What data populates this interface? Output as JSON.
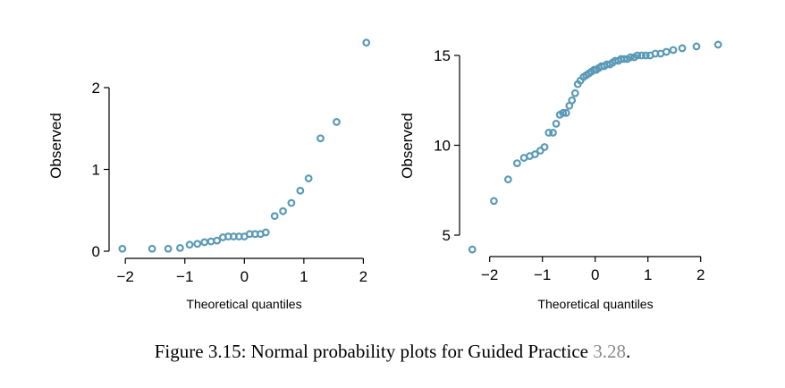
{
  "accent_color": "#5b9ab6",
  "reference_color": "#8a8a8a",
  "caption": {
    "text": "Figure 3.15: Normal probability plots for Guided Practice",
    "ref": "3.28",
    "end": "."
  },
  "chart_data": [
    {
      "type": "scatter",
      "title": "",
      "xlabel": "Theoretical quantiles",
      "ylabel": "Observed",
      "xlim": [
        -2.1,
        2.1
      ],
      "ylim": [
        0,
        2.6
      ],
      "xticks": [
        -2,
        -1,
        0,
        1,
        2
      ],
      "xtick_labels": [
        "−2",
        "−1",
        "0",
        "1",
        "2"
      ],
      "yticks": [
        0,
        1,
        2
      ],
      "ytick_labels": [
        "0",
        "1",
        "2"
      ],
      "x": [
        -2.05,
        -1.55,
        -1.28,
        -1.08,
        -0.92,
        -0.79,
        -0.67,
        -0.56,
        -0.46,
        -0.36,
        -0.27,
        -0.18,
        -0.09,
        0.0,
        0.09,
        0.18,
        0.27,
        0.36,
        0.51,
        0.65,
        0.79,
        0.94,
        1.08,
        1.28,
        1.55,
        2.05
      ],
      "y": [
        0.03,
        0.03,
        0.03,
        0.04,
        0.08,
        0.09,
        0.11,
        0.12,
        0.13,
        0.17,
        0.18,
        0.18,
        0.18,
        0.18,
        0.21,
        0.21,
        0.21,
        0.23,
        0.43,
        0.49,
        0.59,
        0.74,
        0.89,
        1.38,
        1.58,
        2.55
      ]
    },
    {
      "type": "scatter",
      "title": "",
      "xlabel": "Theoretical quantiles",
      "ylabel": "Observed",
      "xlim": [
        -2.35,
        2.35
      ],
      "ylim": [
        4.3,
        15.7
      ],
      "xticks": [
        -2,
        -1,
        0,
        1,
        2
      ],
      "xtick_labels": [
        "−2",
        "−1",
        "0",
        "1",
        "2"
      ],
      "yticks": [
        5,
        10,
        15
      ],
      "ytick_labels": [
        "5",
        "10",
        "15"
      ],
      "x": [
        -2.33,
        -1.92,
        -1.65,
        -1.48,
        -1.35,
        -1.24,
        -1.14,
        -1.04,
        -0.96,
        -0.88,
        -0.8,
        -0.74,
        -0.67,
        -0.61,
        -0.55,
        -0.49,
        -0.44,
        -0.38,
        -0.33,
        -0.28,
        -0.22,
        -0.17,
        -0.12,
        -0.07,
        -0.02,
        0.02,
        0.07,
        0.12,
        0.17,
        0.22,
        0.28,
        0.33,
        0.38,
        0.44,
        0.49,
        0.55,
        0.61,
        0.67,
        0.74,
        0.8,
        0.88,
        0.96,
        1.04,
        1.14,
        1.24,
        1.35,
        1.48,
        1.65,
        1.92,
        2.33
      ],
      "y": [
        4.2,
        6.9,
        8.1,
        9.0,
        9.3,
        9.4,
        9.5,
        9.7,
        9.9,
        10.7,
        10.7,
        11.2,
        11.7,
        11.8,
        11.8,
        12.2,
        12.5,
        12.9,
        13.4,
        13.6,
        13.8,
        13.9,
        14.0,
        14.1,
        14.2,
        14.2,
        14.3,
        14.4,
        14.4,
        14.5,
        14.5,
        14.6,
        14.7,
        14.7,
        14.8,
        14.8,
        14.8,
        14.9,
        14.9,
        15.0,
        15.0,
        15.0,
        15.0,
        15.1,
        15.1,
        15.2,
        15.3,
        15.4,
        15.5,
        15.6
      ]
    }
  ]
}
